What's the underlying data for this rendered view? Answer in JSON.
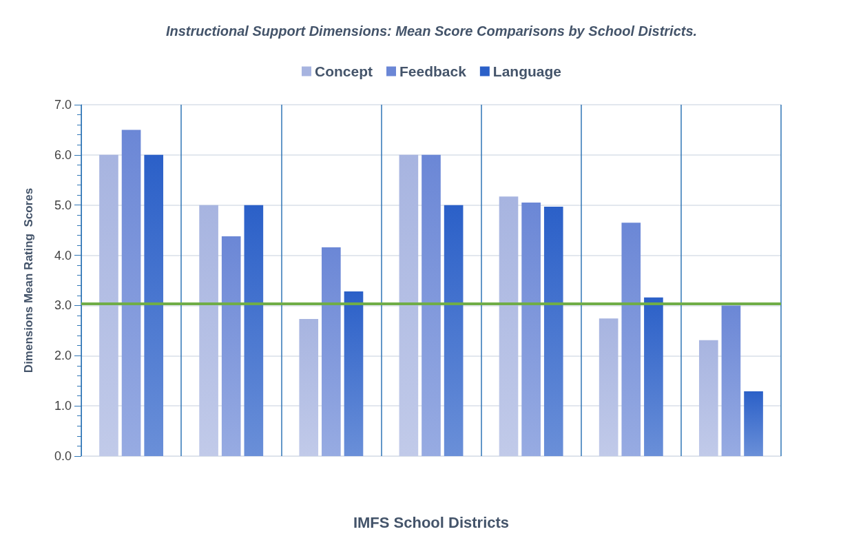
{
  "chart_data": {
    "type": "bar",
    "title": "Instructional Support Dimensions: Mean Score Comparisons by School Districts.",
    "xlabel": "IMFS School Districts",
    "ylabel": "Dimensions Mean Rating  Scores",
    "categories": [
      null,
      null,
      null,
      null,
      null,
      null,
      null
    ],
    "series": [
      {
        "name": "Concept",
        "color": "#a7b4e0",
        "values": [
          6.0,
          5.0,
          2.73,
          6.0,
          5.17,
          2.74,
          2.31
        ]
      },
      {
        "name": "Feedback",
        "color": "#6b87d6",
        "values": [
          6.5,
          4.38,
          4.16,
          6.0,
          5.05,
          4.65,
          3.0
        ]
      },
      {
        "name": "Language",
        "color": "#2b60c8",
        "values": [
          6.0,
          5.0,
          3.28,
          5.0,
          4.97,
          3.16,
          1.29
        ]
      }
    ],
    "ylim": [
      0,
      7
    ],
    "yticks": [
      {
        "value": 0,
        "label": "0.0"
      },
      {
        "value": 1,
        "label": "1.0"
      },
      {
        "value": 2,
        "label": "2.0"
      },
      {
        "value": 3,
        "label": "3.0"
      },
      {
        "value": 4,
        "label": "4.0"
      },
      {
        "value": 5,
        "label": "5.0"
      },
      {
        "value": 6,
        "label": "6.0"
      },
      {
        "value": 7,
        "label": "7.0"
      }
    ],
    "ref_lines": [
      {
        "axis": "y",
        "value": 3.03,
        "color": "#70ad47"
      }
    ],
    "grid": true,
    "legend": "top"
  }
}
